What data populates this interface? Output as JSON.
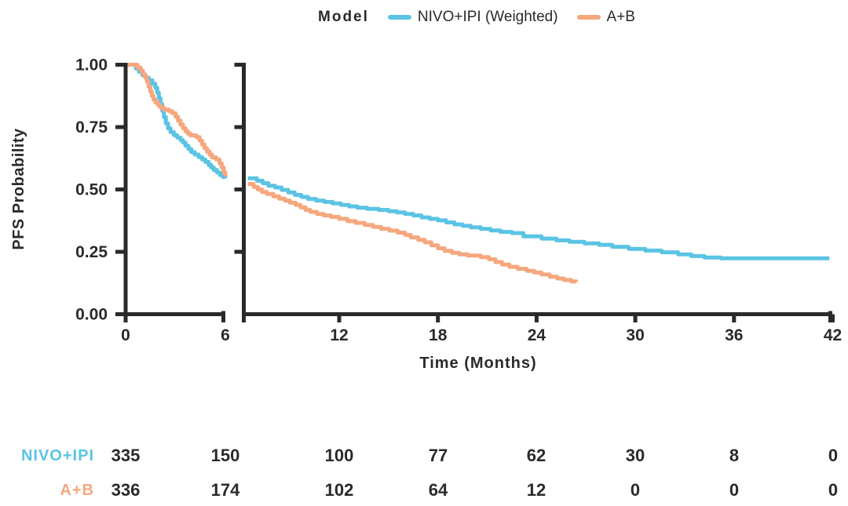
{
  "legend": {
    "title": "Model",
    "items": [
      {
        "label": "NIVO+IPI (Weighted)",
        "color": "#5BC4E4"
      },
      {
        "label": "A+B",
        "color": "#F6A77E"
      }
    ]
  },
  "colors": {
    "axis": "#2B2A2B",
    "text": "#2B2A2B",
    "background": "#FFFFFF"
  },
  "chart_data": {
    "type": "line",
    "subtype": "kaplan-meier-step",
    "title": "",
    "x_label": "Time (Months)",
    "y_label": "PFS Probability",
    "ylim": [
      0,
      1
    ],
    "grid": false,
    "legend_position": "top-center",
    "y_ticks": [
      1.0,
      0.75,
      0.5,
      0.25,
      0.0
    ],
    "y_tick_labels": [
      "1.00",
      "0.75",
      "0.50",
      "0.25",
      "0.00"
    ],
    "x_axis_break": true,
    "panels": [
      {
        "x_ticks": [
          0,
          6
        ],
        "xlim": [
          0,
          6
        ]
      },
      {
        "x_ticks": [
          12,
          18,
          24,
          30,
          36,
          42
        ],
        "xlim": [
          6.2,
          42
        ]
      }
    ],
    "series": [
      {
        "name": "NIVO+IPI (Weighted)",
        "color": "#5BC4E4",
        "points_panel1": [
          [
            0,
            1
          ],
          [
            0.5,
            1
          ],
          [
            0.62,
            0.985
          ],
          [
            0.8,
            0.972
          ],
          [
            1.0,
            0.958
          ],
          [
            1.2,
            0.948
          ],
          [
            1.4,
            0.938
          ],
          [
            1.6,
            0.924
          ],
          [
            1.78,
            0.908
          ],
          [
            1.9,
            0.888
          ],
          [
            2.0,
            0.866
          ],
          [
            2.1,
            0.842
          ],
          [
            2.2,
            0.815
          ],
          [
            2.3,
            0.79
          ],
          [
            2.42,
            0.765
          ],
          [
            2.55,
            0.745
          ],
          [
            2.7,
            0.73
          ],
          [
            2.9,
            0.718
          ],
          [
            3.1,
            0.708
          ],
          [
            3.3,
            0.698
          ],
          [
            3.45,
            0.688
          ],
          [
            3.6,
            0.675
          ],
          [
            3.78,
            0.662
          ],
          [
            3.95,
            0.65
          ],
          [
            4.15,
            0.64
          ],
          [
            4.4,
            0.63
          ],
          [
            4.6,
            0.62
          ],
          [
            4.8,
            0.61
          ],
          [
            5.0,
            0.598
          ],
          [
            5.15,
            0.588
          ],
          [
            5.3,
            0.578
          ],
          [
            5.5,
            0.568
          ],
          [
            5.68,
            0.558
          ],
          [
            5.85,
            0.55
          ],
          [
            6.0,
            0.545
          ]
        ],
        "points_panel2": [
          [
            6.45,
            0.545
          ],
          [
            7.0,
            0.535
          ],
          [
            7.35,
            0.525
          ],
          [
            7.7,
            0.515
          ],
          [
            8.1,
            0.508
          ],
          [
            8.5,
            0.498
          ],
          [
            8.9,
            0.488
          ],
          [
            9.3,
            0.478
          ],
          [
            9.7,
            0.47
          ],
          [
            10.1,
            0.462
          ],
          [
            10.6,
            0.455
          ],
          [
            11.1,
            0.45
          ],
          [
            11.6,
            0.444
          ],
          [
            12.1,
            0.438
          ],
          [
            12.6,
            0.432
          ],
          [
            13.1,
            0.427
          ],
          [
            13.7,
            0.422
          ],
          [
            14.4,
            0.418
          ],
          [
            15.0,
            0.413
          ],
          [
            15.5,
            0.408
          ],
          [
            16.0,
            0.402
          ],
          [
            16.5,
            0.396
          ],
          [
            17.0,
            0.388
          ],
          [
            17.5,
            0.382
          ],
          [
            18.0,
            0.376
          ],
          [
            18.5,
            0.368
          ],
          [
            19.0,
            0.36
          ],
          [
            19.5,
            0.354
          ],
          [
            20.0,
            0.348
          ],
          [
            20.6,
            0.342
          ],
          [
            21.2,
            0.336
          ],
          [
            21.8,
            0.33
          ],
          [
            22.5,
            0.325
          ],
          [
            23.2,
            0.312
          ],
          [
            24.3,
            0.303
          ],
          [
            25.2,
            0.296
          ],
          [
            26.0,
            0.29
          ],
          [
            26.9,
            0.284
          ],
          [
            27.8,
            0.278
          ],
          [
            28.6,
            0.27
          ],
          [
            29.6,
            0.262
          ],
          [
            30.6,
            0.255
          ],
          [
            31.6,
            0.248
          ],
          [
            32.6,
            0.24
          ],
          [
            33.4,
            0.233
          ],
          [
            34.2,
            0.227
          ],
          [
            35.2,
            0.224
          ],
          [
            41.8,
            0.224
          ]
        ]
      },
      {
        "name": "A+B",
        "color": "#F6A77E",
        "points_panel1": [
          [
            0,
            1
          ],
          [
            0.6,
            1
          ],
          [
            0.72,
            0.988
          ],
          [
            0.9,
            0.976
          ],
          [
            1.05,
            0.962
          ],
          [
            1.17,
            0.948
          ],
          [
            1.28,
            0.932
          ],
          [
            1.38,
            0.912
          ],
          [
            1.48,
            0.893
          ],
          [
            1.58,
            0.875
          ],
          [
            1.68,
            0.86
          ],
          [
            1.8,
            0.848
          ],
          [
            1.95,
            0.838
          ],
          [
            2.1,
            0.828
          ],
          [
            2.3,
            0.82
          ],
          [
            2.6,
            0.814
          ],
          [
            2.8,
            0.806
          ],
          [
            3.0,
            0.792
          ],
          [
            3.15,
            0.776
          ],
          [
            3.3,
            0.76
          ],
          [
            3.45,
            0.746
          ],
          [
            3.6,
            0.733
          ],
          [
            3.75,
            0.724
          ],
          [
            3.9,
            0.717
          ],
          [
            4.25,
            0.71
          ],
          [
            4.45,
            0.696
          ],
          [
            4.6,
            0.68
          ],
          [
            4.75,
            0.665
          ],
          [
            4.9,
            0.652
          ],
          [
            5.05,
            0.64
          ],
          [
            5.2,
            0.628
          ],
          [
            5.45,
            0.62
          ],
          [
            5.65,
            0.605
          ],
          [
            5.78,
            0.588
          ],
          [
            5.9,
            0.568
          ],
          [
            6.0,
            0.552
          ]
        ],
        "points_panel2": [
          [
            6.45,
            0.522
          ],
          [
            6.8,
            0.51
          ],
          [
            7.05,
            0.5
          ],
          [
            7.3,
            0.49
          ],
          [
            7.6,
            0.482
          ],
          [
            8.0,
            0.472
          ],
          [
            8.35,
            0.463
          ],
          [
            8.7,
            0.455
          ],
          [
            9.0,
            0.447
          ],
          [
            9.35,
            0.438
          ],
          [
            9.65,
            0.428
          ],
          [
            9.95,
            0.418
          ],
          [
            10.25,
            0.41
          ],
          [
            10.65,
            0.402
          ],
          [
            11.05,
            0.396
          ],
          [
            11.5,
            0.39
          ],
          [
            12.0,
            0.382
          ],
          [
            12.5,
            0.373
          ],
          [
            13.0,
            0.366
          ],
          [
            13.55,
            0.358
          ],
          [
            14.05,
            0.35
          ],
          [
            14.55,
            0.342
          ],
          [
            15.05,
            0.335
          ],
          [
            15.55,
            0.327
          ],
          [
            16.0,
            0.318
          ],
          [
            16.35,
            0.308
          ],
          [
            16.8,
            0.298
          ],
          [
            17.2,
            0.288
          ],
          [
            17.6,
            0.276
          ],
          [
            18.0,
            0.264
          ],
          [
            18.4,
            0.254
          ],
          [
            18.85,
            0.246
          ],
          [
            19.3,
            0.24
          ],
          [
            19.8,
            0.235
          ],
          [
            20.6,
            0.229
          ],
          [
            21.1,
            0.22
          ],
          [
            21.5,
            0.209
          ],
          [
            21.9,
            0.199
          ],
          [
            22.35,
            0.19
          ],
          [
            22.85,
            0.182
          ],
          [
            23.4,
            0.174
          ],
          [
            23.85,
            0.167
          ],
          [
            24.3,
            0.159
          ],
          [
            24.8,
            0.15
          ],
          [
            25.25,
            0.143
          ],
          [
            25.65,
            0.137
          ],
          [
            26.1,
            0.131
          ],
          [
            26.4,
            0.128
          ]
        ]
      }
    ],
    "risk_table": {
      "times": [
        0,
        6,
        12,
        18,
        24,
        30,
        36,
        42
      ],
      "rows": [
        {
          "label": "NIVO+IPI",
          "color": "#5BC4E4",
          "values": [
            335,
            150,
            100,
            77,
            62,
            30,
            8,
            0
          ]
        },
        {
          "label": "A+B",
          "color": "#F6A77E",
          "values": [
            336,
            174,
            102,
            64,
            12,
            0,
            0,
            0
          ]
        }
      ]
    }
  }
}
